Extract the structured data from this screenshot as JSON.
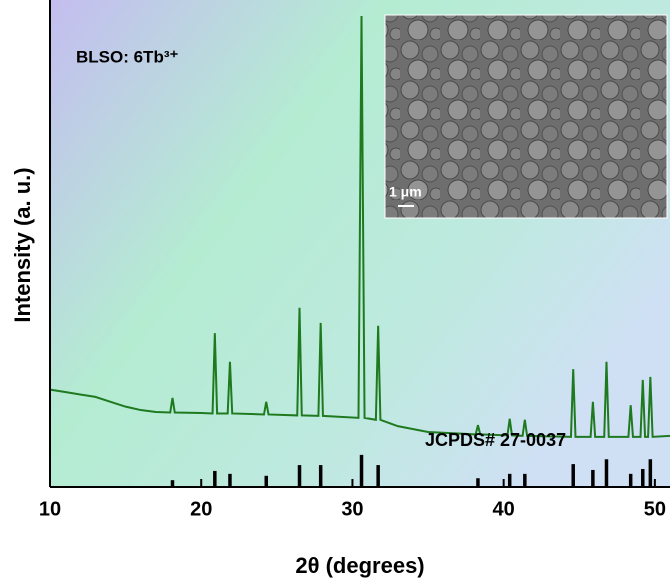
{
  "chart_data": {
    "type": "line",
    "x_label": "2θ (degrees)",
    "y_label": "Intensity (a. u.)",
    "annotation": "BLSO: 6Tb³⁺",
    "xlim": [
      10,
      51
    ],
    "ylim": [
      0,
      100
    ],
    "xticks": [
      10,
      20,
      30,
      40,
      50
    ],
    "x": [
      10,
      11,
      12,
      13,
      14,
      15,
      16,
      17,
      17.95,
      18.1,
      18.25,
      20,
      20.75,
      20.9,
      21.05,
      21.75,
      21.9,
      22.05,
      24.15,
      24.3,
      24.45,
      26.35,
      26.5,
      26.65,
      27.75,
      27.9,
      28.05,
      30.4,
      30.6,
      30.8,
      31.55,
      31.7,
      31.85,
      33,
      35,
      38.15,
      38.3,
      38.45,
      40.25,
      40.4,
      40.55,
      41.25,
      41.4,
      41.55,
      44.45,
      44.6,
      44.75,
      45.75,
      45.9,
      46.05,
      46.65,
      46.8,
      46.95,
      48.25,
      48.4,
      48.55,
      49.05,
      49.2,
      49.35,
      49.55,
      49.7,
      49.85,
      51
    ],
    "series": [
      {
        "color": "#1f7a1f",
        "values": [
          20,
          19.5,
          19,
          18.5,
          17.5,
          16.5,
          15.8,
          15.4,
          15.3,
          18.3,
          15.3,
          15.2,
          15.1,
          31.6,
          15.1,
          15.1,
          25.7,
          15.1,
          14.9,
          17.5,
          14.9,
          14.7,
          36.8,
          14.7,
          14.6,
          33.7,
          14.6,
          14.2,
          96.7,
          14.2,
          13.8,
          33.1,
          13.8,
          12.5,
          11.3,
          10.8,
          12.7,
          10.8,
          10.6,
          14,
          10.6,
          10.5,
          13.8,
          10.5,
          10.3,
          24.2,
          10.3,
          10.3,
          17.5,
          10.3,
          10.3,
          25.7,
          10.3,
          10.3,
          16.8,
          10.3,
          10.3,
          22,
          10.3,
          10.3,
          22.6,
          10.3,
          10.5
        ]
      }
    ],
    "reference": {
      "label": "JCPDS# 27-0037",
      "color": "#000000",
      "x": [
        18.1,
        20.9,
        21.9,
        24.3,
        26.5,
        27.9,
        30.6,
        31.7,
        38.3,
        40.4,
        41.4,
        44.6,
        45.9,
        46.8,
        48.4,
        49.2,
        49.7
      ],
      "values": [
        1.4,
        3.3,
        2.7,
        2.3,
        4.5,
        4.5,
        6.6,
        4.5,
        1.8,
        2.7,
        2.7,
        4.7,
        3.5,
        5.7,
        2.7,
        3.7,
        5.7
      ]
    },
    "inset": {
      "scale_label": "1 μm"
    }
  }
}
